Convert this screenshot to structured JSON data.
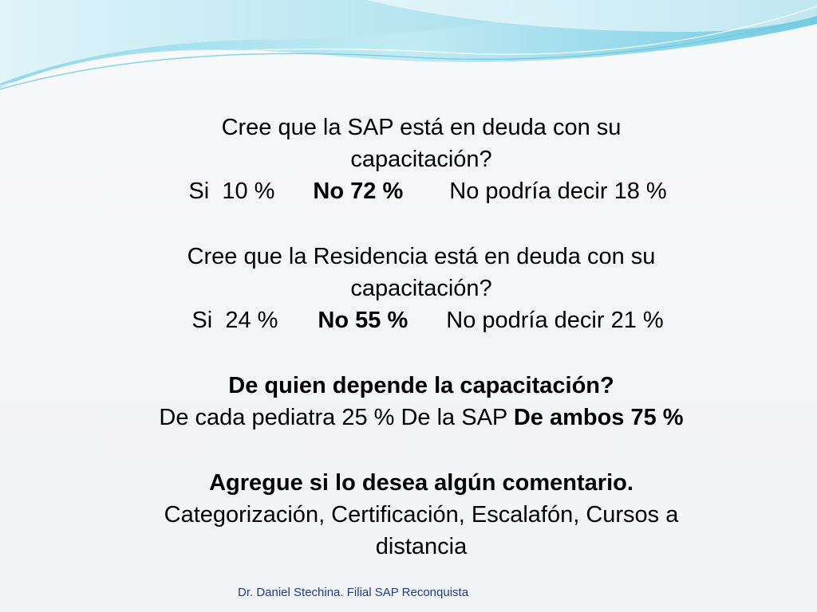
{
  "q1": {
    "question_line1": "Cree que la SAP está en deuda con su",
    "question_line2": "capacitación?",
    "si": "Si  10 %",
    "no": "No 72 %",
    "no_sabe": "No podría decir 18 %"
  },
  "q2": {
    "question_line1": "Cree que la Residencia está en deuda con su",
    "question_line2": "capacitación?",
    "si": "Si  24 %",
    "no": "No 55 %",
    "no_sabe": "No podría decir 21 %"
  },
  "q3": {
    "question": "De quien depende la capacitación?",
    "answer_plain": "De cada pediatra 25 % De la SAP ",
    "answer_bold": "De ambos 75 %"
  },
  "q4": {
    "question": "Agregue si lo desea algún comentario.",
    "answer_line1": "Categorización, Certificación, Escalafón, Cursos a",
    "answer_line2": "distancia"
  },
  "footer": {
    "text": "Dr. Daniel Stechina. Filial SAP Reconquista"
  },
  "colors": {
    "wave_primary": "#5bc8e0",
    "wave_light": "#c6ecf5",
    "footer_text": "#1f3c88"
  }
}
